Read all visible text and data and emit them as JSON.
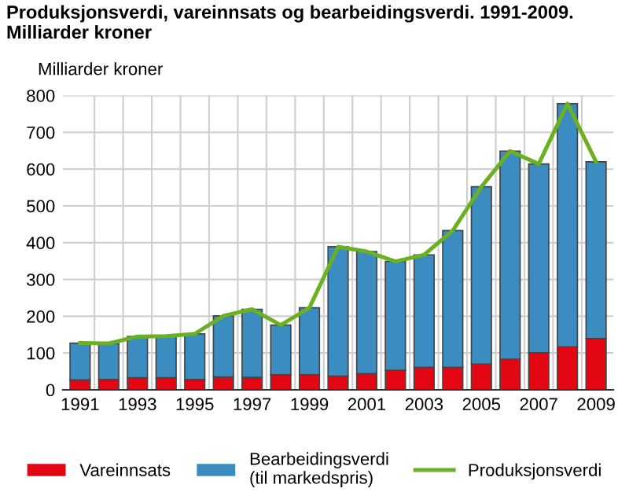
{
  "chart_data": {
    "type": "bar",
    "stacked": true,
    "title": "Produksjonsverdi, vareinnsats og bearbeidingsverdi. 1991-2009.\nMilliarder kroner",
    "ylabel": "Milliarder kroner",
    "categories": [
      "1991",
      null,
      "1993",
      null,
      "1995",
      null,
      "1997",
      null,
      "1999",
      null,
      "2001",
      null,
      "2003",
      null,
      "2005",
      null,
      "2007",
      null,
      "2009"
    ],
    "series": [
      {
        "name": "Vareinnsats",
        "color": "#e30613",
        "values": [
          27,
          28,
          33,
          33,
          28,
          35,
          34,
          41,
          41,
          37,
          44,
          53,
          61,
          61,
          70,
          83,
          101,
          117,
          139
        ]
      },
      {
        "name": "Bearbeidingsverdi\n(til markedspris)",
        "color": "#3a8cc1",
        "values": [
          100,
          98,
          112,
          113,
          124,
          166,
          185,
          135,
          182,
          352,
          332,
          296,
          306,
          372,
          482,
          566,
          513,
          661,
          481
        ]
      },
      {
        "name": "Produksjonsverdi",
        "type": "line",
        "color": "#6ab023",
        "values": [
          127,
          126,
          145,
          146,
          152,
          201,
          219,
          176,
          223,
          389,
          376,
          349,
          367,
          433,
          552,
          649,
          614,
          778,
          620
        ]
      }
    ],
    "ylim": [
      0,
      800
    ],
    "yticks": [
      0,
      100,
      200,
      300,
      400,
      500,
      600,
      700,
      800
    ],
    "grid": true,
    "legend": "bottom"
  }
}
